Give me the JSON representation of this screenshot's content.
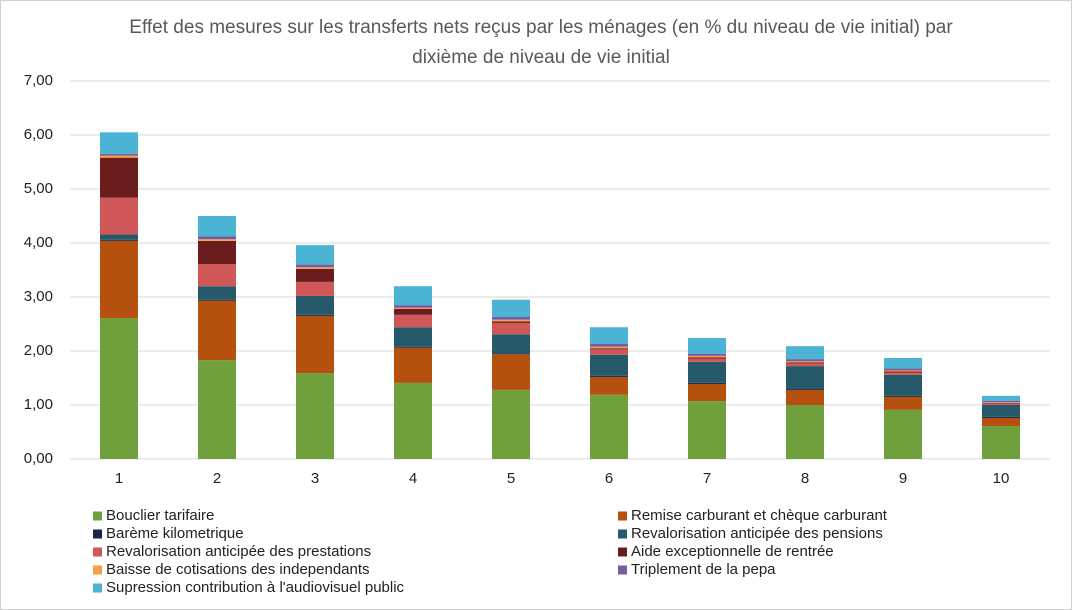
{
  "chart_data": {
    "type": "stacked_bar",
    "title": "Effet des mesures sur les transferts nets reçus par les ménages (en % du niveau de vie initial) par dixième de niveau de vie initial",
    "categories": [
      "1",
      "2",
      "3",
      "4",
      "5",
      "6",
      "7",
      "8",
      "9",
      "10"
    ],
    "ylim": [
      0,
      7
    ],
    "yticks": [
      {
        "value": 0,
        "label": "0,00"
      },
      {
        "value": 1,
        "label": "1,00"
      },
      {
        "value": 2,
        "label": "2,00"
      },
      {
        "value": 3,
        "label": "3,00"
      },
      {
        "value": 4,
        "label": "4,00"
      },
      {
        "value": 5,
        "label": "5,00"
      },
      {
        "value": 6,
        "label": "6,00"
      },
      {
        "value": 7,
        "label": "7,00"
      }
    ],
    "grid": true,
    "legend": "bottom",
    "series": [
      {
        "name": "Bouclier tarifaire",
        "color": "#70a03b",
        "values": [
          2.61,
          1.83,
          1.59,
          1.41,
          1.28,
          1.19,
          1.07,
          1.0,
          0.91,
          0.61
        ]
      },
      {
        "name": "Remise carburant et chèque carburant",
        "color": "#b5500f",
        "values": [
          1.43,
          1.1,
          1.06,
          0.65,
          0.66,
          0.33,
          0.32,
          0.28,
          0.24,
          0.15
        ]
      },
      {
        "name": "Barème kilometrique",
        "color": "#1a2740",
        "values": [
          0.02,
          0.02,
          0.02,
          0.02,
          0.02,
          0.02,
          0.02,
          0.03,
          0.02,
          0.02
        ]
      },
      {
        "name": "Revalorisation anticipée des pensions",
        "color": "#265a6b",
        "values": [
          0.1,
          0.25,
          0.35,
          0.36,
          0.35,
          0.39,
          0.39,
          0.41,
          0.39,
          0.22
        ]
      },
      {
        "name": "Revalorisation anticipée des prestations",
        "color": "#cf5757",
        "values": [
          0.68,
          0.41,
          0.26,
          0.23,
          0.21,
          0.1,
          0.06,
          0.05,
          0.04,
          0.03
        ]
      },
      {
        "name": "Aide exceptionnelle de rentrée",
        "color": "#6b1c1c",
        "values": [
          0.74,
          0.43,
          0.24,
          0.11,
          0.03,
          0.02,
          0.02,
          0.02,
          0.02,
          0.01
        ]
      },
      {
        "name": "Baisse de cotisations des independants",
        "color": "#f4a04a",
        "values": [
          0.04,
          0.03,
          0.03,
          0.02,
          0.03,
          0.03,
          0.03,
          0.02,
          0.02,
          0.01
        ]
      },
      {
        "name": "Triplement de la pepa",
        "color": "#7a5aa0",
        "values": [
          0.03,
          0.05,
          0.05,
          0.05,
          0.05,
          0.05,
          0.04,
          0.04,
          0.04,
          0.03
        ]
      },
      {
        "name": "Supression contribution à l'audiovisuel public",
        "color": "#4bb3d3",
        "values": [
          0.4,
          0.38,
          0.36,
          0.35,
          0.32,
          0.31,
          0.29,
          0.24,
          0.19,
          0.09
        ]
      }
    ]
  }
}
